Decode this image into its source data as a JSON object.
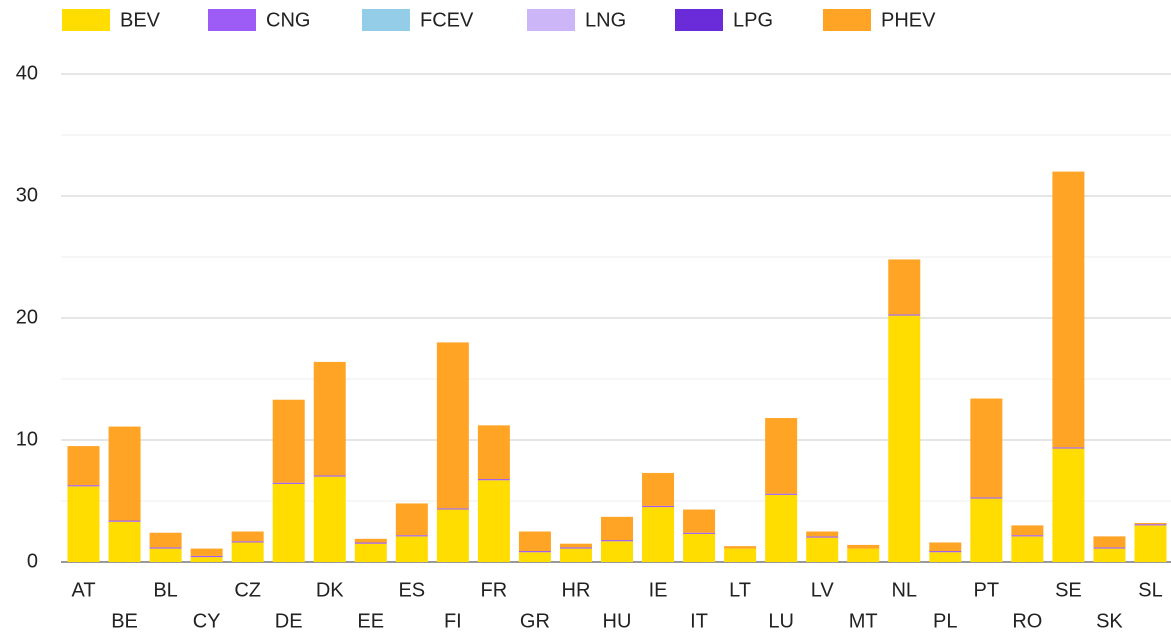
{
  "chart_data": {
    "type": "stacked_bar",
    "categories": [
      "AT",
      "BE",
      "BL",
      "CY",
      "CZ",
      "DE",
      "DK",
      "EE",
      "ES",
      "FI",
      "FR",
      "GR",
      "HR",
      "HU",
      "IE",
      "IT",
      "LT",
      "LU",
      "LV",
      "MT",
      "NL",
      "PL",
      "PT",
      "RO",
      "SE",
      "SK",
      "SL"
    ],
    "series": [
      {
        "name": "BEV",
        "color": "#ffdd00",
        "values": [
          6.2,
          3.3,
          1.1,
          0.4,
          1.6,
          6.4,
          7.0,
          1.5,
          2.1,
          4.3,
          6.7,
          0.8,
          1.1,
          1.7,
          4.5,
          2.3,
          1.1,
          5.5,
          2.0,
          1.1,
          20.2,
          0.8,
          5.2,
          2.1,
          9.3,
          1.1,
          3.0
        ]
      },
      {
        "name": "CNG",
        "color": "#9c5cf5",
        "values": [
          0.1,
          0.1,
          0.1,
          0.1,
          0.1,
          0.1,
          0.1,
          0.1,
          0.1,
          0.1,
          0.1,
          0.1,
          0.1,
          0.1,
          0.1,
          0.1,
          0,
          0.1,
          0.1,
          0,
          0.1,
          0.1,
          0.1,
          0.1,
          0.1,
          0.1,
          0.1
        ]
      },
      {
        "name": "FCEV",
        "color": "#93cde8",
        "values": [
          0,
          0,
          0,
          0,
          0,
          0,
          0,
          0,
          0,
          0,
          0,
          0,
          0,
          0,
          0,
          0,
          0,
          0,
          0,
          0,
          0,
          0,
          0,
          0,
          0,
          0,
          0
        ]
      },
      {
        "name": "LNG",
        "color": "#cdb6f7",
        "values": [
          0,
          0,
          0,
          0,
          0,
          0,
          0,
          0,
          0,
          0,
          0,
          0,
          0,
          0,
          0,
          0,
          0,
          0,
          0,
          0,
          0,
          0,
          0,
          0,
          0,
          0,
          0
        ]
      },
      {
        "name": "LPG",
        "color": "#6a2bd9",
        "values": [
          0,
          0,
          0,
          0,
          0,
          0,
          0,
          0,
          0,
          0,
          0,
          0,
          0,
          0,
          0,
          0,
          0,
          0,
          0,
          0,
          0,
          0,
          0,
          0,
          0,
          0,
          0
        ]
      },
      {
        "name": "PHEV",
        "color": "#ffa424",
        "values": [
          3.2,
          7.7,
          1.2,
          0.6,
          0.8,
          6.8,
          9.3,
          0.3,
          2.6,
          13.6,
          4.4,
          1.6,
          0.3,
          1.9,
          2.7,
          1.9,
          0.2,
          6.2,
          0.4,
          0.3,
          4.5,
          0.7,
          8.1,
          0.8,
          22.6,
          0.9,
          0.1
        ]
      }
    ],
    "ylim": [
      0,
      40
    ],
    "yticks": [
      0,
      10,
      20,
      30,
      40
    ],
    "yminor": [
      5,
      15,
      25,
      35
    ],
    "grid": true,
    "legend": "top"
  }
}
